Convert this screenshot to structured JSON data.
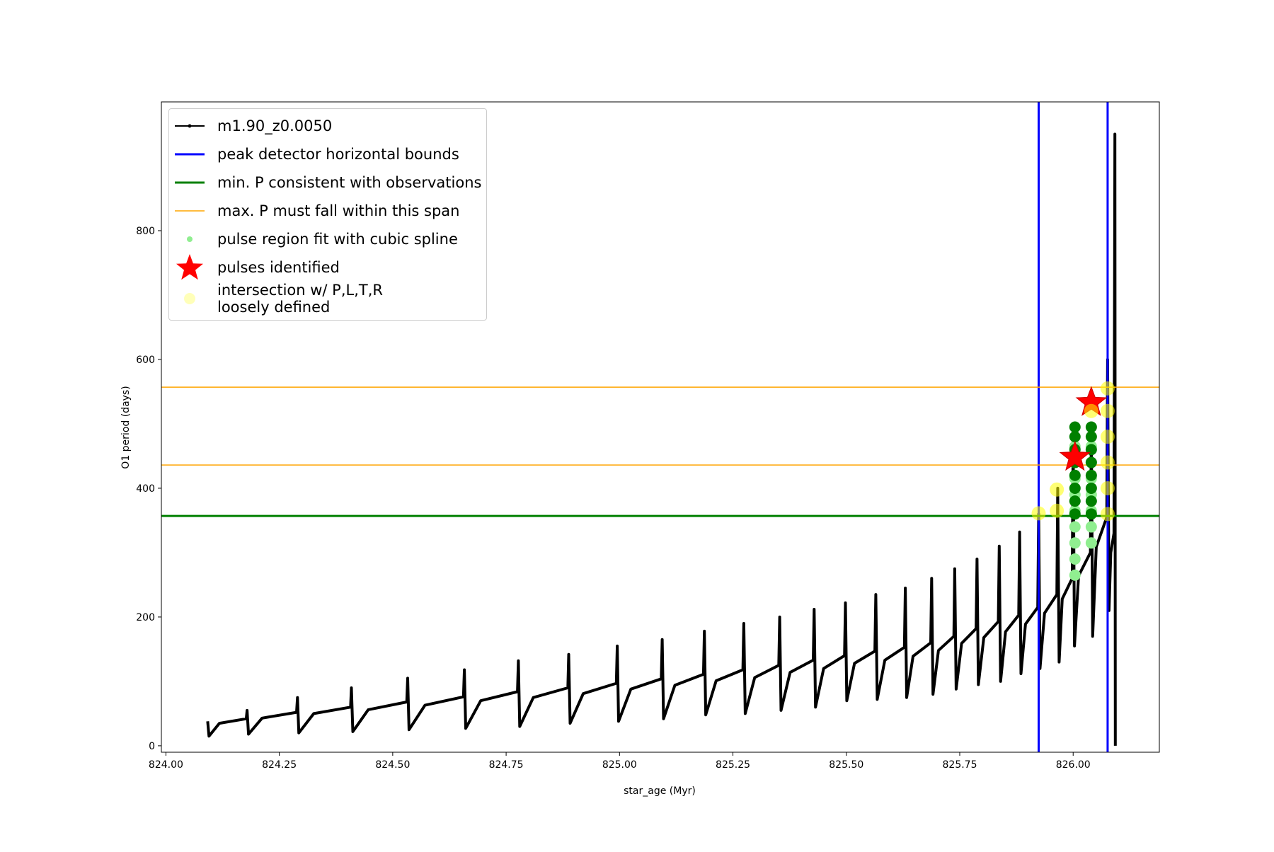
{
  "chart_data": {
    "type": "line",
    "xlabel": "star_age (Myr)",
    "ylabel": "O1 period (days)",
    "xlim": [
      823.99,
      826.19
    ],
    "ylim": [
      -10,
      1000
    ],
    "xticks": [
      {
        "value": 824,
        "label": "824.00"
      },
      {
        "value": 824.25,
        "label": "824.25"
      },
      {
        "value": 824.5,
        "label": "824.50"
      },
      {
        "value": 824.75,
        "label": "824.75"
      },
      {
        "value": 825,
        "label": "825.00"
      },
      {
        "value": 825.25,
        "label": "825.25"
      },
      {
        "value": 825.5,
        "label": "825.50"
      },
      {
        "value": 825.75,
        "label": "825.75"
      },
      {
        "value": 826,
        "label": "826.00"
      }
    ],
    "yticks": [
      0,
      200,
      400,
      600,
      800
    ],
    "legend": "upper left",
    "series": [
      {
        "name": "m1.90_z0.0050",
        "color": "#000000",
        "marker": "dot",
        "x": [
          824.092,
          824.095,
          824.118,
          824.177,
          824.179,
          824.182,
          824.212,
          824.288,
          824.29,
          824.293,
          824.326,
          824.407,
          824.409,
          824.412,
          824.446,
          824.531,
          824.533,
          824.536,
          824.571,
          824.656,
          824.658,
          824.661,
          824.694,
          824.775,
          824.777,
          824.78,
          824.81,
          824.886,
          824.888,
          824.891,
          824.92,
          824.993,
          824.995,
          824.998,
          825.025,
          825.092,
          825.094,
          825.097,
          825.122,
          825.185,
          825.187,
          825.19,
          825.213,
          825.272,
          825.274,
          825.277,
          825.298,
          825.351,
          825.353,
          825.356,
          825.376,
          825.427,
          825.429,
          825.432,
          825.45,
          825.496,
          825.498,
          825.501,
          825.518,
          825.563,
          825.565,
          825.568,
          825.585,
          825.628,
          825.63,
          825.633,
          825.647,
          825.686,
          825.688,
          825.691,
          825.703,
          825.737,
          825.739,
          825.742,
          825.754,
          825.786,
          825.788,
          825.791,
          825.803,
          825.835,
          825.837,
          825.84,
          825.851,
          825.88,
          825.882,
          825.885,
          825.895,
          825.922,
          825.924,
          825.927,
          825.937,
          825.964,
          825.966,
          825.969,
          825.976,
          825.998,
          826.0,
          826.003,
          826.012,
          826.038,
          826.04,
          826.043,
          826.051,
          826.074,
          826.076,
          826.079,
          826.083,
          826.09,
          826.092,
          826.093
        ],
        "values": [
          38,
          15,
          35,
          42,
          55,
          18,
          43,
          52,
          75,
          20,
          50,
          60,
          90,
          22,
          56,
          68,
          105,
          25,
          63,
          76,
          118,
          27,
          70,
          84,
          132,
          30,
          75,
          90,
          142,
          35,
          81,
          97,
          155,
          38,
          88,
          104,
          165,
          42,
          94,
          111,
          178,
          48,
          101,
          118,
          190,
          50,
          106,
          125,
          200,
          55,
          114,
          133,
          212,
          60,
          120,
          140,
          222,
          70,
          128,
          147,
          235,
          72,
          133,
          153,
          245,
          75,
          139,
          160,
          260,
          80,
          148,
          170,
          275,
          88,
          159,
          182,
          290,
          95,
          168,
          193,
          310,
          100,
          177,
          203,
          332,
          112,
          189,
          215,
          360,
          120,
          206,
          235,
          400,
          130,
          228,
          260,
          480,
          155,
          264,
          300,
          500,
          170,
          309,
          355,
          600,
          210,
          300,
          330,
          950,
          0
        ]
      }
    ],
    "reference_lines": [
      {
        "name": "peak detector horizontal bounds",
        "color": "#0000ff",
        "orientation": "vertical",
        "width": 3,
        "values": [
          825.924,
          826.076
        ]
      },
      {
        "name": "min. P consistent with observations",
        "color": "#008000",
        "orientation": "horizontal",
        "width": 3,
        "values": [
          357
        ]
      },
      {
        "name": "max. P must fall within this span",
        "color": "#ffa500",
        "orientation": "horizontal",
        "width": 1.5,
        "values": [
          436,
          557
        ]
      }
    ],
    "scatter": [
      {
        "name": "pulse region fit with cubic spline",
        "color": "#90ee90",
        "marker": "dot",
        "alpha": 1,
        "x": [
          826.004,
          826.004,
          826.004,
          826.004,
          826.004,
          826.004,
          826.004,
          826.004,
          826.004,
          826.04,
          826.04,
          826.04,
          826.04,
          826.04,
          826.04,
          826.04
        ],
        "values": [
          265,
          290,
          315,
          340,
          365,
          390,
          415,
          440,
          465,
          315,
          340,
          365,
          390,
          415,
          440,
          465
        ]
      },
      {
        "color": "#008000",
        "marker": "dot",
        "alpha": 1,
        "x": [
          826.004,
          826.004,
          826.004,
          826.004,
          826.004,
          826.004,
          826.004,
          826.004,
          826.04,
          826.04,
          826.04,
          826.04,
          826.04,
          826.04,
          826.04,
          826.04
        ],
        "values": [
          360,
          380,
          400,
          420,
          440,
          460,
          480,
          495,
          360,
          380,
          400,
          420,
          440,
          460,
          480,
          495
        ]
      },
      {
        "name": "pulses identified",
        "color": "#ff0000",
        "marker": "star",
        "alpha": 1,
        "x": [
          826.004,
          826.04
        ],
        "values": [
          448,
          533
        ]
      },
      {
        "name": "intersection w/ P,L,T,R\nloosely defined",
        "color": "#ffff00",
        "marker": "circle",
        "alpha": 0.55,
        "x": [
          825.924,
          825.964,
          825.964,
          826.076,
          826.076,
          826.076,
          826.076,
          826.076,
          826.076,
          826.04
        ],
        "values": [
          361,
          398,
          365,
          360,
          400,
          440,
          480,
          520,
          555,
          520
        ]
      }
    ]
  }
}
